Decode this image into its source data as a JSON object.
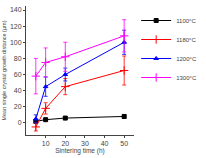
{
  "chart_data": {
    "type": "line",
    "xlabel": "Sintering time (h)",
    "ylabel": "Mean single crystal growth distance (µm)",
    "x": [
      5,
      10,
      20,
      50
    ],
    "xlim": [
      0,
      55
    ],
    "ylim": [
      -15,
      145
    ],
    "xticks": [
      10,
      20,
      30,
      40,
      50
    ],
    "yticks": [
      0,
      20,
      40,
      60,
      80,
      100,
      120,
      140
    ],
    "grid": false,
    "legend": "upper right",
    "series": [
      {
        "name": "1100°C",
        "color": "black",
        "marker": "square",
        "values": [
          2,
          4,
          6,
          8
        ],
        "yerr": [
          1,
          1,
          1.5,
          2
        ]
      },
      {
        "name": "1180°C",
        "color": "red",
        "marker": "plus",
        "values": [
          -5,
          18,
          45,
          65
        ],
        "yerr": [
          5,
          7,
          10,
          18
        ]
      },
      {
        "name": "1200°C",
        "color": "blue",
        "marker": "triangle-up",
        "values": [
          5,
          45,
          60,
          100
        ],
        "yerr": [
          5,
          12,
          8,
          15
        ]
      },
      {
        "name": "1300°C",
        "color": "magenta",
        "marker": "plus",
        "values": [
          58,
          75,
          82,
          108
        ],
        "yerr": [
          22,
          18,
          18,
          20
        ]
      }
    ]
  }
}
